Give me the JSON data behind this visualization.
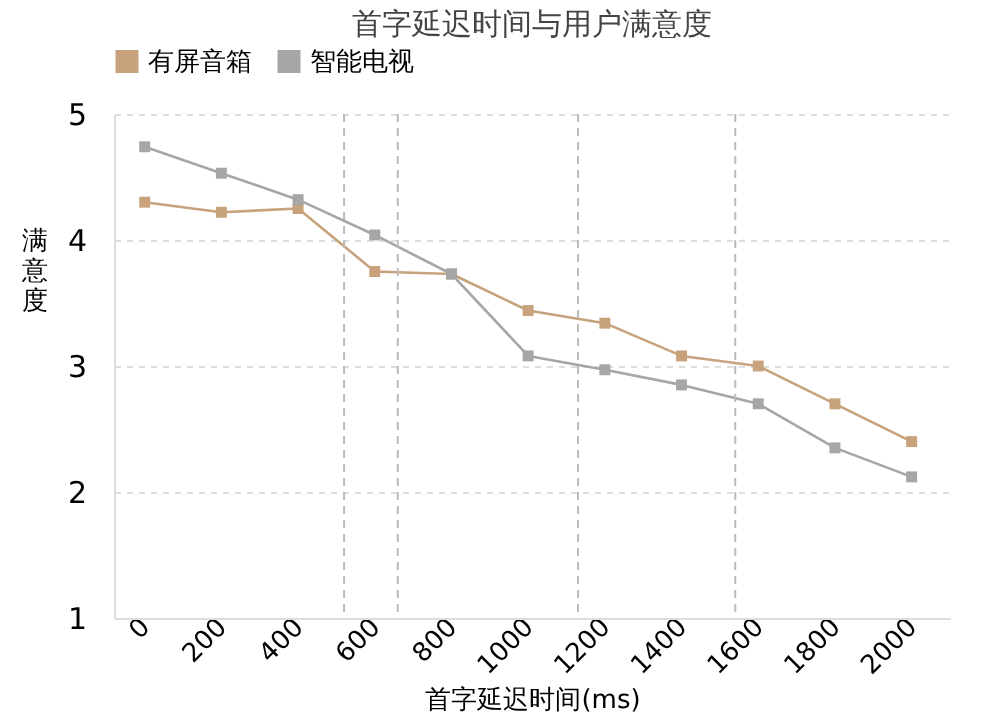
{
  "chart_data": {
    "type": "line",
    "title": "首字延迟时间与用户满意度",
    "xlabel": "首字延迟时间(ms)",
    "ylabel": "满意度",
    "x": [
      0,
      200,
      400,
      600,
      800,
      1000,
      1200,
      1400,
      1600,
      1800,
      2000
    ],
    "series": [
      {
        "name": "有屏音箱",
        "color": "#c8a27c",
        "values": [
          4.3,
          4.22,
          4.25,
          3.75,
          3.73,
          3.44,
          3.34,
          3.08,
          3.0,
          2.7,
          2.4
        ]
      },
      {
        "name": "智能电视",
        "color": "#a6a6a6",
        "values": [
          4.74,
          4.53,
          4.32,
          4.04,
          3.73,
          3.08,
          2.97,
          2.85,
          2.7,
          2.35,
          2.12
        ]
      }
    ],
    "xlim": [
      -80,
      2100
    ],
    "xticks": [
      0,
      200,
      400,
      600,
      800,
      1000,
      1200,
      1400,
      1600,
      1800,
      2000
    ],
    "ylim": [
      1,
      5
    ],
    "yticks": [
      1,
      2,
      3,
      4,
      5
    ],
    "ref_lines": [
      {
        "axis": "x",
        "value": 520,
        "line_style": "dashed",
        "color": "#bbbbbb"
      },
      {
        "axis": "x",
        "value": 660,
        "line_style": "dashed",
        "color": "#bbbbbb"
      },
      {
        "axis": "x",
        "value": 1130,
        "line_style": "dashed",
        "color": "#bbbbbb"
      },
      {
        "axis": "x",
        "value": 1540,
        "line_style": "dashed",
        "color": "#bbbbbb"
      }
    ],
    "grid": "y",
    "legend": "top",
    "marker": "square",
    "line_style": "solid"
  }
}
